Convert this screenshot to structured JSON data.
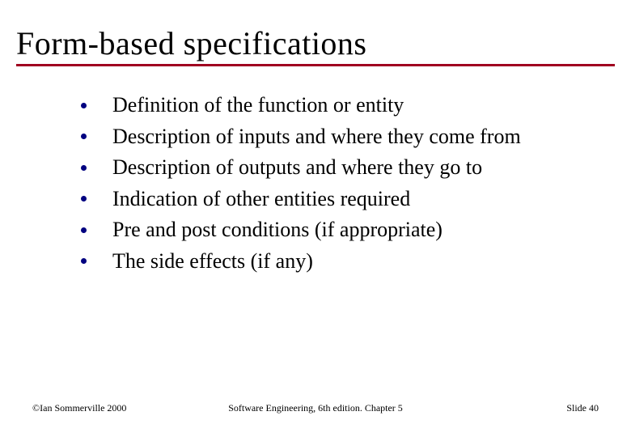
{
  "title": "Form-based specifications",
  "rule_color": "#a00020",
  "bullets": {
    "dot_color": "#000080",
    "items": [
      "Definition of the function or entity",
      "Description of inputs and where they come from",
      "Description of outputs and where they go to",
      "Indication of other entities required",
      "Pre and post conditions (if appropriate)",
      "The side effects (if any)"
    ]
  },
  "footer": {
    "left": "©Ian Sommerville 2000",
    "center": "Software Engineering, 6th edition. Chapter 5",
    "right": "Slide  40"
  },
  "text_color": "#000000",
  "title_fontsize": 40,
  "bullet_fontsize": 26,
  "footer_fontsize": 12
}
